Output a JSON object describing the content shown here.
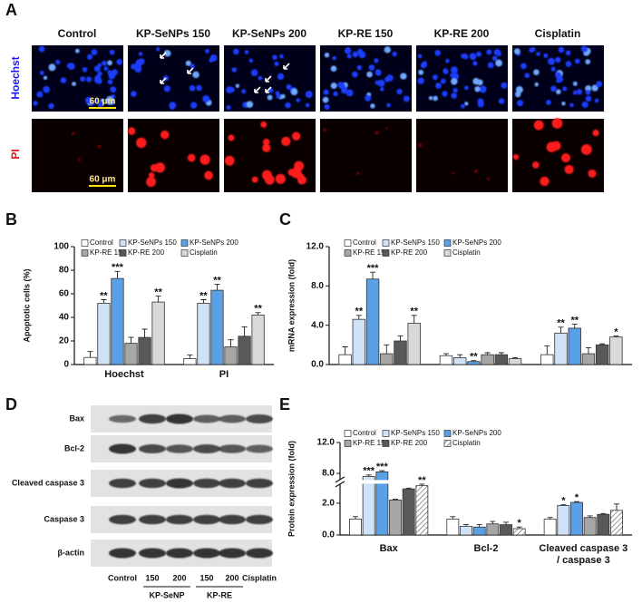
{
  "panel_labels": [
    "A",
    "B",
    "C",
    "D",
    "E"
  ],
  "microscopy": {
    "columns": [
      "Control",
      "KP-SeNPs 150",
      "KP-SeNPs 200",
      "KP-RE 150",
      "KP-RE 200",
      "Cisplatin"
    ],
    "rows": [
      "Hoechst",
      "PI"
    ],
    "scale_bars": [
      "60 μm",
      "60 μm"
    ]
  },
  "western_blot": {
    "proteins": [
      "Bax",
      "Bcl-2",
      "Cleaved caspase 3",
      "Caspase 3",
      "β-actin"
    ],
    "lanes": [
      "Control",
      "150",
      "200",
      "150",
      "200",
      "Cisplatin"
    ],
    "groups": [
      "KP-SeNP",
      "KP-RE"
    ]
  },
  "chart_data": [
    {
      "type": "bar",
      "y_label": "Apoptotic cells (%)",
      "categories": [
        "Hoechst",
        "PI"
      ],
      "ylim": [
        0,
        100
      ],
      "yticks": [
        0,
        20,
        40,
        60,
        80,
        100
      ],
      "legend": "top-left",
      "series": [
        {
          "name": "Control",
          "color": "#ffffff",
          "values": [
            6,
            5
          ],
          "errors": [
            5,
            3
          ],
          "significance": [
            null,
            null
          ]
        },
        {
          "name": "KP-SeNPs 150",
          "color": "#cfe2f8",
          "values": [
            52,
            52
          ],
          "errors": [
            3,
            3
          ],
          "significance": [
            "**",
            "**"
          ]
        },
        {
          "name": "KP-SeNPs 200",
          "color": "#5aa0e6",
          "values": [
            73,
            63
          ],
          "errors": [
            6,
            5
          ],
          "significance": [
            "***",
            "**"
          ]
        },
        {
          "name": "KP-RE 150",
          "color": "#a6a6a6",
          "values": [
            18,
            15
          ],
          "errors": [
            5,
            6
          ],
          "significance": [
            null,
            null
          ]
        },
        {
          "name": "KP-RE 200",
          "color": "#595959",
          "values": [
            23,
            24
          ],
          "errors": [
            7,
            8
          ],
          "significance": [
            null,
            null
          ]
        },
        {
          "name": "Cisplatin",
          "color": "#d9d9d9",
          "values": [
            53,
            42
          ],
          "errors": [
            5,
            2
          ],
          "significance": [
            "**",
            "**"
          ]
        }
      ]
    },
    {
      "type": "bar",
      "y_label": "mRNA expression (fold)",
      "categories": [
        null,
        null,
        null
      ],
      "ylim": [
        0,
        12
      ],
      "yticks": [
        {
          "value": 0,
          "label": "0.0"
        },
        {
          "value": 4,
          "label": "4.0"
        },
        {
          "value": 8,
          "label": "8.0"
        },
        {
          "value": 12,
          "label": "12.0"
        }
      ],
      "legend": "top-left",
      "series": [
        {
          "name": "Control",
          "color": "#ffffff",
          "values": [
            1.0,
            0.9,
            1.0
          ],
          "errors": [
            0.8,
            0.2,
            0.9
          ],
          "significance": [
            null,
            null,
            null
          ]
        },
        {
          "name": "KP-SeNPs 150",
          "color": "#cfe2f8",
          "values": [
            4.6,
            0.7,
            3.2
          ],
          "errors": [
            0.4,
            0.3,
            0.6
          ],
          "significance": [
            "**",
            null,
            "**"
          ]
        },
        {
          "name": "KP-SeNPs 200",
          "color": "#5aa0e6",
          "values": [
            8.7,
            0.3,
            3.7
          ],
          "errors": [
            0.7,
            0.1,
            0.4
          ],
          "significance": [
            "***",
            "**",
            "**"
          ]
        },
        {
          "name": "KP-RE 150",
          "color": "#a6a6a6",
          "values": [
            1.1,
            1.0,
            1.1
          ],
          "errors": [
            0.9,
            0.2,
            0.6
          ],
          "significance": [
            null,
            null,
            null
          ]
        },
        {
          "name": "KP-RE 200",
          "color": "#595959",
          "values": [
            2.4,
            1.0,
            2.0
          ],
          "errors": [
            0.5,
            0.2,
            0.1
          ],
          "significance": [
            null,
            null,
            null
          ]
        },
        {
          "name": "Cisplatin",
          "color": "#d9d9d9",
          "values": [
            4.2,
            0.6,
            2.8
          ],
          "errors": [
            0.8,
            0.1,
            0.1
          ],
          "significance": [
            "**",
            null,
            "*"
          ]
        }
      ]
    },
    {
      "type": "bar",
      "y_label": "Protein expression (fold)",
      "categories": [
        "Bax",
        "Bcl-2",
        "Cleaved caspase 3\n/ caspase 3"
      ],
      "ylim": [
        0,
        12
      ],
      "axis_break": [
        3.2,
        7.2
      ],
      "yticks": [
        {
          "value": 0,
          "label": "0.0"
        },
        {
          "value": 2,
          "label": "2.0"
        },
        {
          "value": 8,
          "label": "8.0"
        },
        {
          "value": 12,
          "label": "12.0"
        }
      ],
      "legend": "top-left",
      "series": [
        {
          "name": "Control",
          "color": "#ffffff",
          "values": [
            1.0,
            1.0,
            1.0
          ],
          "errors": [
            0.15,
            0.15,
            0.1
          ],
          "significance": [
            null,
            null,
            null
          ]
        },
        {
          "name": "KP-SeNPs 150",
          "color": "#cfe2f8",
          "values": [
            7.6,
            0.55,
            1.85
          ],
          "errors": [
            0.2,
            0.1,
            0.05
          ],
          "significance": [
            "***",
            null,
            "*"
          ]
        },
        {
          "name": "KP-SeNPs 200",
          "color": "#5aa0e6",
          "values": [
            8.2,
            0.5,
            2.05
          ],
          "errors": [
            0.15,
            0.15,
            0.05
          ],
          "significance": [
            "***",
            null,
            "*"
          ]
        },
        {
          "name": "KP-RE 150",
          "color": "#a6a6a6",
          "values": [
            2.2,
            0.7,
            1.1
          ],
          "errors": [
            0.05,
            0.15,
            0.1
          ],
          "significance": [
            null,
            null,
            null
          ]
        },
        {
          "name": "KP-RE 200",
          "color": "#595959",
          "values": [
            2.9,
            0.65,
            1.3
          ],
          "errors": [
            0.05,
            0.15,
            0.05
          ],
          "significance": [
            null,
            null,
            null
          ]
        },
        {
          "name": "Cisplatin",
          "color": "#ffffff",
          "pattern": "hatched",
          "values": [
            3.1,
            0.4,
            1.55
          ],
          "errors": [
            0.1,
            0.1,
            0.4
          ],
          "significance": [
            "**",
            "*",
            null
          ]
        }
      ]
    }
  ]
}
